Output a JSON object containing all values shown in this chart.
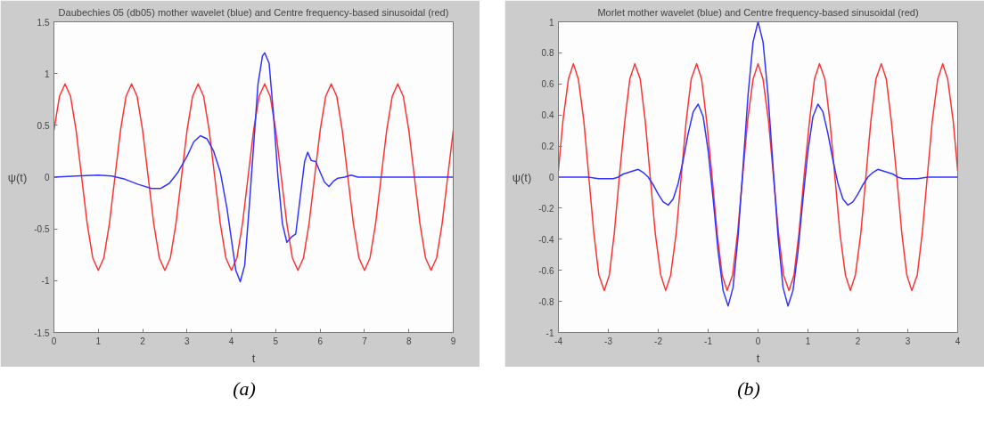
{
  "chart_data": [
    {
      "type": "line",
      "title": "Daubechies 05 (db05) mother wavelet (blue) and Centre frequency-based sinusoidal (red)",
      "xlabel": "t",
      "ylabel": "ψ(t)",
      "xlim": [
        0,
        9
      ],
      "ylim": [
        -1.5,
        1.5
      ],
      "xticks": [
        0,
        1,
        2,
        3,
        4,
        5,
        6,
        7,
        8,
        9
      ],
      "yticks": [
        -1.5,
        -1,
        -0.5,
        0,
        0.5,
        1,
        1.5
      ],
      "annotations": [
        "(a)"
      ],
      "series": [
        {
          "color": "#ff3333",
          "x": [
            0,
            0.125,
            0.25,
            0.375,
            0.5,
            0.625,
            0.75,
            0.875,
            1,
            1.125,
            1.25,
            1.375,
            1.5,
            1.625,
            1.75,
            1.875,
            2,
            2.125,
            2.25,
            2.375,
            2.5,
            2.625,
            2.75,
            2.875,
            3,
            3.125,
            3.25,
            3.375,
            3.5,
            3.625,
            3.75,
            3.875,
            4,
            4.125,
            4.25,
            4.375,
            4.5,
            4.625,
            4.75,
            4.875,
            5,
            5.125,
            5.25,
            5.375,
            5.5,
            5.625,
            5.75,
            5.875,
            6,
            6.125,
            6.25,
            6.375,
            6.5,
            6.625,
            6.75,
            6.875,
            7,
            7.125,
            7.25,
            7.375,
            7.5,
            7.625,
            7.75,
            7.875,
            8,
            8.125,
            8.25,
            8.375,
            8.5,
            8.625,
            8.75,
            8.875,
            9
          ],
          "values": [
            0.45,
            0.78,
            0.9,
            0.78,
            0.45,
            0,
            -0.45,
            -0.78,
            -0.9,
            -0.78,
            -0.45,
            0,
            0.45,
            0.78,
            0.9,
            0.78,
            0.45,
            0,
            -0.45,
            -0.78,
            -0.9,
            -0.78,
            -0.45,
            0,
            0.45,
            0.78,
            0.9,
            0.78,
            0.45,
            0,
            -0.45,
            -0.78,
            -0.9,
            -0.78,
            -0.45,
            0,
            0.45,
            0.78,
            0.9,
            0.78,
            0.45,
            0,
            -0.45,
            -0.78,
            -0.9,
            -0.78,
            -0.45,
            0,
            0.45,
            0.78,
            0.9,
            0.78,
            0.45,
            0,
            -0.45,
            -0.78,
            -0.9,
            -0.78,
            -0.45,
            0,
            0.45,
            0.78,
            0.9,
            0.78,
            0.45,
            0,
            -0.45,
            -0.78,
            -0.9,
            -0.78,
            -0.45,
            0,
            0.45
          ]
        },
        {
          "color": "#3333ff",
          "x": [
            0,
            0.5,
            1,
            1.3,
            1.6,
            1.9,
            2.2,
            2.4,
            2.6,
            2.8,
            3,
            3.15,
            3.3,
            3.45,
            3.6,
            3.75,
            3.9,
            4,
            4.1,
            4.2,
            4.3,
            4.4,
            4.5,
            4.6,
            4.7,
            4.75,
            4.85,
            4.95,
            5.05,
            5.15,
            5.25,
            5.35,
            5.45,
            5.55,
            5.65,
            5.72,
            5.8,
            5.9,
            6,
            6.1,
            6.2,
            6.3,
            6.4,
            6.55,
            6.7,
            6.85,
            7,
            8,
            9
          ],
          "values": [
            0,
            0.01,
            0.02,
            0.01,
            -0.02,
            -0.07,
            -0.11,
            -0.11,
            -0.06,
            0.05,
            0.2,
            0.34,
            0.4,
            0.37,
            0.25,
            0.05,
            -0.3,
            -0.6,
            -0.9,
            -1.01,
            -0.85,
            -0.3,
            0.3,
            0.9,
            1.17,
            1.2,
            1.1,
            0.6,
            0,
            -0.45,
            -0.63,
            -0.58,
            -0.55,
            -0.2,
            0.15,
            0.24,
            0.16,
            0.15,
            0.05,
            -0.05,
            -0.09,
            -0.04,
            -0.01,
            0,
            0.02,
            0,
            0,
            0,
            0
          ]
        }
      ]
    },
    {
      "type": "line",
      "title": "Morlet mother wavelet (blue) and Centre frequency-based sinusoidal (red)",
      "xlabel": "t",
      "ylabel": "ψ(t)",
      "xlim": [
        -4,
        4
      ],
      "ylim": [
        -1,
        1
      ],
      "xticks": [
        -4,
        -3,
        -2,
        -1,
        0,
        1,
        2,
        3,
        4
      ],
      "yticks": [
        -1,
        -0.8,
        -0.6,
        -0.4,
        -0.2,
        0,
        0.2,
        0.4,
        0.6,
        0.8,
        1
      ],
      "annotations": [
        "(b)"
      ],
      "series": [
        {
          "color": "#ff3333",
          "x": [
            -4,
            -3.91,
            -3.8,
            -3.7,
            -3.6,
            -3.49,
            -3.39,
            -3.29,
            -3.19,
            -3.08,
            -2.98,
            -2.88,
            -2.78,
            -2.67,
            -2.57,
            -2.47,
            -2.36,
            -2.26,
            -2.16,
            -2.06,
            -1.95,
            -1.85,
            -1.75,
            -1.64,
            -1.54,
            -1.44,
            -1.34,
            -1.23,
            -1.13,
            -1.03,
            -0.92,
            -0.82,
            -0.72,
            -0.62,
            -0.51,
            -0.41,
            -0.31,
            -0.21,
            -0.1,
            0,
            0.1,
            0.21,
            0.31,
            0.41,
            0.51,
            0.62,
            0.72,
            0.82,
            0.92,
            1.03,
            1.13,
            1.23,
            1.34,
            1.44,
            1.54,
            1.64,
            1.75,
            1.85,
            1.95,
            2.06,
            2.16,
            2.26,
            2.36,
            2.47,
            2.57,
            2.67,
            2.78,
            2.88,
            2.98,
            3.08,
            3.19,
            3.29,
            3.39,
            3.49,
            3.6,
            3.7,
            3.8,
            3.91,
            4
          ],
          "values": [
            0.04,
            0.36,
            0.63,
            0.73,
            0.63,
            0.36,
            0,
            -0.36,
            -0.63,
            -0.73,
            -0.63,
            -0.36,
            0,
            0.36,
            0.63,
            0.73,
            0.63,
            0.36,
            0,
            -0.36,
            -0.63,
            -0.73,
            -0.63,
            -0.36,
            0,
            0.36,
            0.63,
            0.73,
            0.63,
            0.36,
            0,
            -0.36,
            -0.63,
            -0.73,
            -0.63,
            -0.36,
            0,
            0.36,
            0.63,
            0.73,
            0.63,
            0.36,
            0,
            -0.36,
            -0.63,
            -0.73,
            -0.63,
            -0.36,
            0,
            0.36,
            0.63,
            0.73,
            0.63,
            0.36,
            0,
            -0.36,
            -0.63,
            -0.73,
            -0.63,
            -0.36,
            0,
            0.36,
            0.63,
            0.73,
            0.63,
            0.36,
            0,
            -0.36,
            -0.63,
            -0.73,
            -0.63,
            -0.36,
            0,
            0.36,
            0.63,
            0.73,
            0.63,
            0.36,
            0.04
          ]
        },
        {
          "color": "#3333ff",
          "x": [
            -4,
            -3.4,
            -3.2,
            -3,
            -2.9,
            -2.8,
            -2.7,
            -2.6,
            -2.5,
            -2.4,
            -2.3,
            -2.2,
            -2.1,
            -2,
            -1.9,
            -1.8,
            -1.7,
            -1.6,
            -1.5,
            -1.4,
            -1.3,
            -1.2,
            -1.1,
            -1,
            -0.9,
            -0.8,
            -0.7,
            -0.6,
            -0.5,
            -0.4,
            -0.3,
            -0.2,
            -0.1,
            0,
            0.1,
            0.2,
            0.3,
            0.4,
            0.5,
            0.6,
            0.7,
            0.8,
            0.9,
            1,
            1.1,
            1.2,
            1.3,
            1.4,
            1.5,
            1.6,
            1.7,
            1.8,
            1.9,
            2,
            2.1,
            2.2,
            2.3,
            2.4,
            2.5,
            2.6,
            2.7,
            2.8,
            2.9,
            3,
            3.2,
            3.4,
            4
          ],
          "values": [
            0,
            0,
            -0.01,
            -0.01,
            -0.01,
            0,
            0.02,
            0.03,
            0.04,
            0.05,
            0.03,
            0,
            -0.05,
            -0.11,
            -0.16,
            -0.18,
            -0.14,
            -0.04,
            0.11,
            0.28,
            0.42,
            0.47,
            0.39,
            0.17,
            -0.14,
            -0.48,
            -0.73,
            -0.83,
            -0.71,
            -0.38,
            0.07,
            0.53,
            0.87,
            1,
            0.87,
            0.53,
            0.07,
            -0.38,
            -0.71,
            -0.83,
            -0.73,
            -0.48,
            -0.14,
            0.17,
            0.39,
            0.47,
            0.42,
            0.28,
            0.11,
            -0.04,
            -0.14,
            -0.18,
            -0.16,
            -0.11,
            -0.05,
            0,
            0.03,
            0.05,
            0.04,
            0.03,
            0.02,
            0,
            -0.01,
            -0.01,
            -0.01,
            0,
            0
          ]
        }
      ]
    }
  ]
}
